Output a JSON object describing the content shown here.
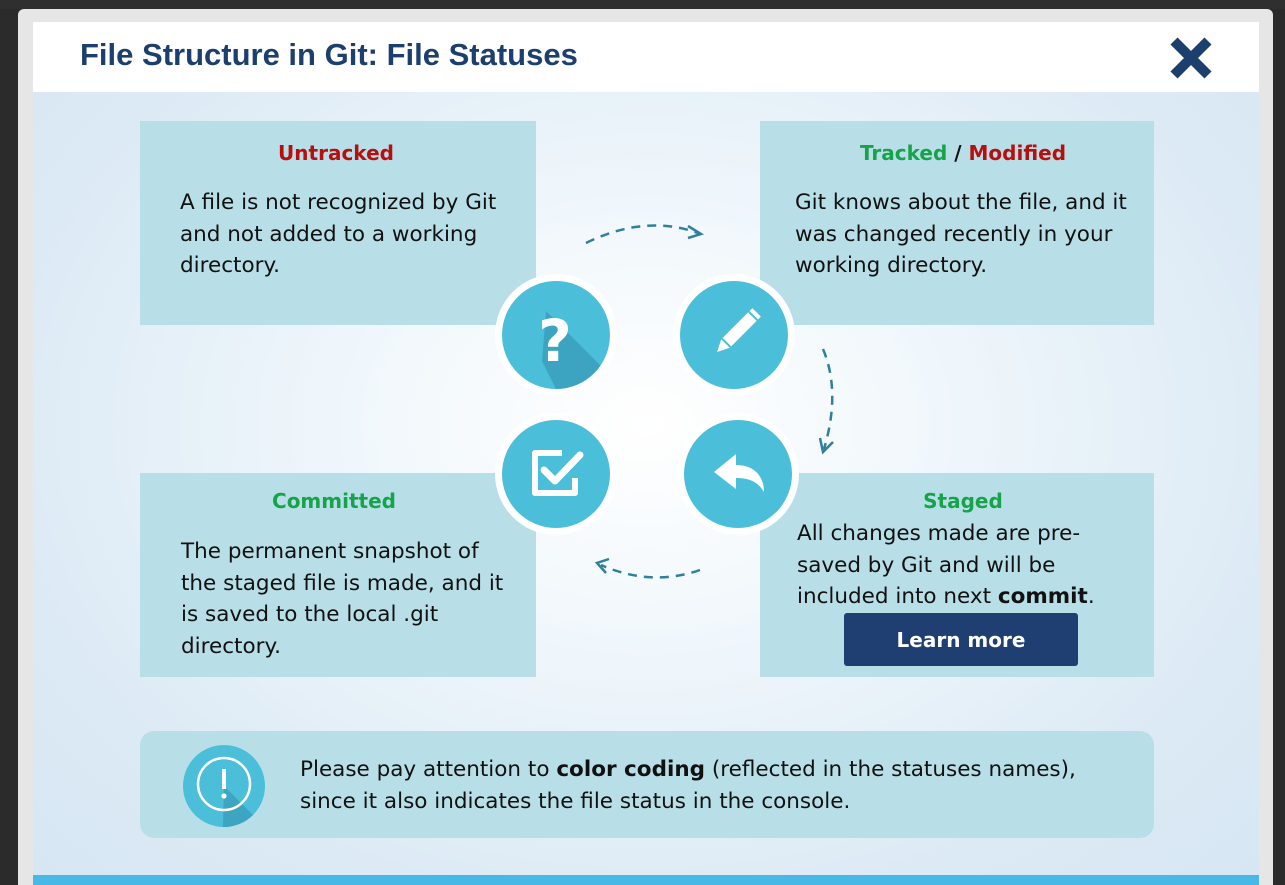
{
  "header": {
    "title": "File Structure in Git: File Statuses",
    "close_icon": "close-icon"
  },
  "colors": {
    "title": "#1d3f6e",
    "green": "#16a34a",
    "red": "#b90e0e",
    "card": "#b8dfe8",
    "circle": "#4bbfda",
    "button": "#1f3f73",
    "bottom_bar": "#48b9e6"
  },
  "cards": {
    "untracked": {
      "title": "Untracked",
      "body": "A file is not recognized by Git and not added to a working directory.",
      "icon": "question-mark-icon"
    },
    "tracked": {
      "title_tracked": "Tracked",
      "title_sep": " / ",
      "title_modified": "Modified",
      "body": "Git knows about the file, and it was changed recently in your working directory.",
      "icon": "pencil-icon"
    },
    "committed": {
      "title": "Committed",
      "body": "The permanent snapshot of the staged file is made, and it is saved to the local .git directory.",
      "icon": "checkbox-icon"
    },
    "staged": {
      "title": "Staged",
      "body_prefix": "All changes made are pre-saved by Git and will be included into next ",
      "body_bold": "commit",
      "body_suffix": ".",
      "icon": "reply-arrow-icon",
      "button_label": "Learn more"
    }
  },
  "note": {
    "icon": "exclamation-icon",
    "text_before": "Please pay attention to ",
    "text_bold": "color coding",
    "text_after": " (reflected in the statuses names), since it also indicates the file status in the console."
  }
}
